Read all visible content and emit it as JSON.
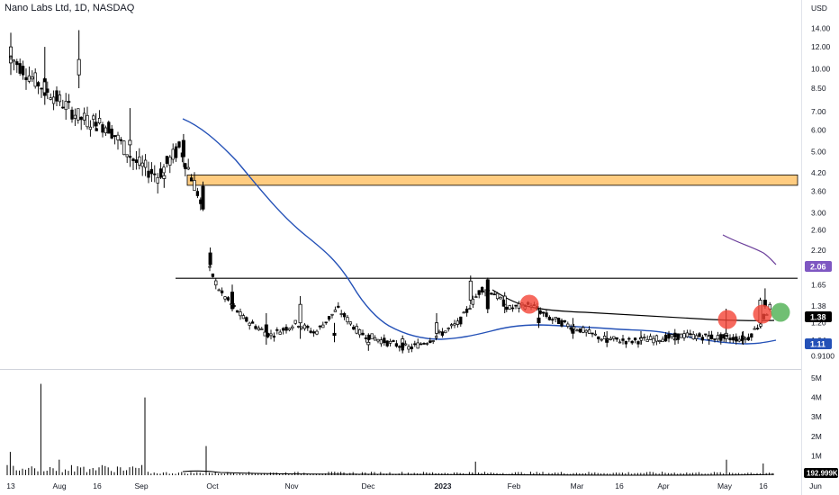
{
  "header": {
    "symbol_title": "Nano Labs Ltd, 1D, NASDAQ"
  },
  "price_axis": {
    "currency": "USD",
    "ticks": [
      "14.00",
      "12.00",
      "10.00",
      "8.50",
      "7.00",
      "6.00",
      "5.00",
      "4.20",
      "3.60",
      "3.00",
      "2.60",
      "2.20",
      "1.90",
      "1.65",
      "1.38",
      "1.20",
      "1.04",
      "0.9100"
    ]
  },
  "volume_axis": {
    "ticks": [
      "5M",
      "4M",
      "3M",
      "2M",
      "1M"
    ]
  },
  "time_axis": {
    "labels": [
      "13",
      "Aug",
      "16",
      "Sep",
      "Oct",
      "Nov",
      "Dec",
      "2023",
      "Feb",
      "Mar",
      "16",
      "Apr",
      "May",
      "16",
      "Jun"
    ]
  },
  "tags": {
    "sma_long": {
      "text": "2.06",
      "color": "#7e57c2"
    },
    "last_price": {
      "text": "1.38",
      "color": "#000000"
    },
    "sma_short": {
      "text": "1.11",
      "color": "#2451b7"
    },
    "volume": {
      "text": "192.999K",
      "color": "#000000"
    }
  },
  "colors": {
    "supply_zone": "#ffcc80",
    "supply_border": "#000000",
    "resistance_marker": "#f44336",
    "breakout_marker": "#4caf50",
    "ma_blue": "#2451b7",
    "ma_purple": "#6a3d9a"
  },
  "chart_data": {
    "type": "candlestick",
    "scale": "log",
    "ylim": [
      0.88,
      15.5
    ],
    "x": [
      "2022-07-13",
      "2023-05-22"
    ],
    "zones": [
      {
        "from": 3.78,
        "to": 4.12
      }
    ],
    "horizontal_lines": [
      1.74
    ],
    "series": [
      {
        "values": [
          {
            "date": "2022-07-13",
            "o": 10.5,
            "h": 13.5,
            "l": 9.5,
            "c": 12.0
          },
          {
            "date": "2022-07-27",
            "o": 9.2,
            "h": 12.0,
            "l": 7.4,
            "c": 8.0
          },
          {
            "date": "2022-08-10",
            "o": 9.5,
            "h": 13.8,
            "l": 8.5,
            "c": 10.8
          },
          {
            "date": "2022-08-17",
            "o": 6.4,
            "h": 6.9,
            "l": 6.0,
            "c": 6.2
          },
          {
            "date": "2022-08-31",
            "o": 5.3,
            "h": 7.2,
            "l": 5.0,
            "c": 5.5
          },
          {
            "date": "2022-09-14",
            "o": 4.0,
            "h": 4.4,
            "l": 3.7,
            "c": 4.1
          },
          {
            "date": "2022-09-22",
            "o": 5.5,
            "h": 5.8,
            "l": 4.4,
            "c": 4.8
          },
          {
            "date": "2022-09-30",
            "o": 3.75,
            "h": 3.9,
            "l": 3.05,
            "c": 3.1
          },
          {
            "date": "2022-10-03",
            "o": 2.15,
            "h": 2.25,
            "l": 1.9,
            "c": 1.95
          },
          {
            "date": "2022-10-12",
            "o": 1.55,
            "h": 1.65,
            "l": 1.32,
            "c": 1.35
          },
          {
            "date": "2022-10-26",
            "o": 1.18,
            "h": 1.3,
            "l": 1.0,
            "c": 1.1
          },
          {
            "date": "2022-11-09",
            "o": 1.2,
            "h": 1.5,
            "l": 1.05,
            "c": 1.4
          },
          {
            "date": "2022-11-23",
            "o": 1.1,
            "h": 1.2,
            "l": 1.02,
            "c": 1.08
          },
          {
            "date": "2022-12-07",
            "o": 1.0,
            "h": 1.1,
            "l": 0.95,
            "c": 1.02
          },
          {
            "date": "2022-12-21",
            "o": 0.98,
            "h": 1.08,
            "l": 0.93,
            "c": 1.05
          },
          {
            "date": "2023-01-04",
            "o": 1.1,
            "h": 1.3,
            "l": 1.05,
            "c": 1.2
          },
          {
            "date": "2023-01-18",
            "o": 1.45,
            "h": 1.78,
            "l": 1.4,
            "c": 1.7
          },
          {
            "date": "2023-01-25",
            "o": 1.72,
            "h": 1.75,
            "l": 1.3,
            "c": 1.35
          },
          {
            "date": "2023-02-01",
            "o": 1.4,
            "h": 1.55,
            "l": 1.3,
            "c": 1.5
          },
          {
            "date": "2023-02-15",
            "o": 1.25,
            "h": 1.35,
            "l": 1.15,
            "c": 1.2
          },
          {
            "date": "2023-03-01",
            "o": 1.15,
            "h": 1.25,
            "l": 1.05,
            "c": 1.1
          },
          {
            "date": "2023-03-15",
            "o": 1.05,
            "h": 1.12,
            "l": 0.98,
            "c": 1.02
          },
          {
            "date": "2023-03-29",
            "o": 1.05,
            "h": 1.12,
            "l": 1.0,
            "c": 1.06
          },
          {
            "date": "2023-04-12",
            "o": 1.04,
            "h": 1.1,
            "l": 1.0,
            "c": 1.05
          },
          {
            "date": "2023-04-26",
            "o": 1.06,
            "h": 1.12,
            "l": 1.0,
            "c": 1.08
          },
          {
            "date": "2023-05-03",
            "o": 1.05,
            "h": 1.35,
            "l": 1.02,
            "c": 1.1
          },
          {
            "date": "2023-05-10",
            "o": 1.05,
            "h": 1.12,
            "l": 1.0,
            "c": 1.07
          },
          {
            "date": "2023-05-17",
            "o": 1.2,
            "h": 1.48,
            "l": 1.15,
            "c": 1.45
          },
          {
            "date": "2023-05-19",
            "o": 1.45,
            "h": 1.6,
            "l": 1.35,
            "c": 1.38
          }
        ]
      }
    ],
    "volume_max": 5000000
  }
}
